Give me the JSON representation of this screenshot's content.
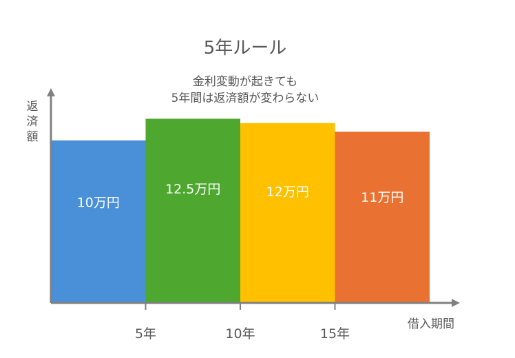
{
  "chart_data": {
    "type": "bar",
    "title": "5年ルール",
    "subtitle_lines": [
      "金利変動が起きても",
      "5年間は返済額が変わらない"
    ],
    "ylabel": "返済額",
    "xlabel": "借入期間",
    "x_ticks": [
      "5年",
      "10年",
      "15年"
    ],
    "bars": [
      {
        "label": "10万円",
        "value": 10,
        "color": "#4A90D9"
      },
      {
        "label": "12.5万円",
        "value": 12.5,
        "color": "#4EA72E"
      },
      {
        "label": "12万円",
        "value": 12,
        "color": "#FFC000"
      },
      {
        "label": "11万円",
        "value": 11,
        "color": "#E97132"
      }
    ],
    "colors": {
      "axis": "#808080",
      "text": "#595959",
      "bar_text": "#ffffff"
    }
  }
}
